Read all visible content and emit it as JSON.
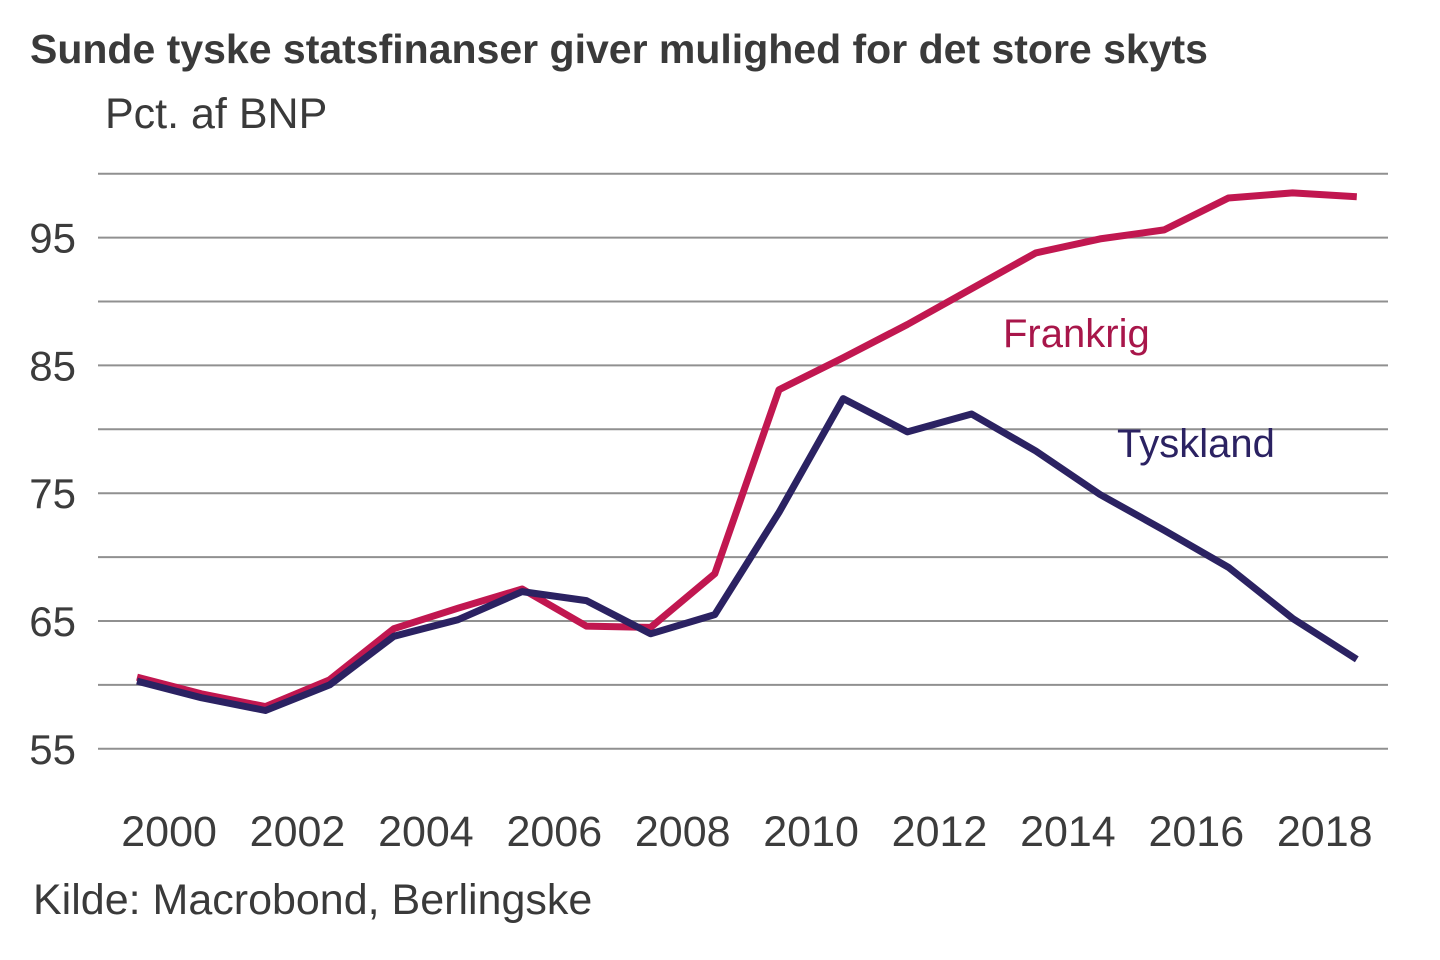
{
  "title": "Sunde tyske statsfinanser giver mulighed for det store skyts",
  "subtitle": "Pct. af BNP",
  "source": "Kilde: Macrobond, Berlingske",
  "colors": {
    "france_line": "#c11750",
    "france_label": "#a8164a",
    "germany_line": "#2b2262",
    "germany_label": "#2b2262",
    "grid": "#909090",
    "text": "#3c3c3c"
  },
  "chart_data": {
    "type": "line",
    "x": [
      1999,
      2000,
      2001,
      2002,
      2003,
      2004,
      2005,
      2006,
      2007,
      2008,
      2009,
      2010,
      2011,
      2012,
      2013,
      2014,
      2015,
      2016,
      2017,
      2018
    ],
    "series": [
      {
        "name": "Frankrig",
        "color_key": "france_line",
        "label_color_key": "france_label",
        "values": [
          60.6,
          59.3,
          58.3,
          60.4,
          64.4,
          66.0,
          67.5,
          64.6,
          64.5,
          68.7,
          83.1,
          85.6,
          88.2,
          91.0,
          93.8,
          94.9,
          95.6,
          98.1,
          98.5,
          98.2
        ]
      },
      {
        "name": "Tyskland",
        "color_key": "germany_line",
        "label_color_key": "germany_label",
        "values": [
          60.3,
          59.0,
          58.0,
          60.0,
          63.8,
          65.1,
          67.3,
          66.6,
          64.0,
          65.5,
          73.5,
          82.4,
          79.8,
          81.2,
          78.3,
          74.9,
          72.1,
          69.2,
          65.2,
          62.0
        ]
      }
    ],
    "title": "Sunde tyske statsfinanser giver mulighed for det store skyts",
    "ylabel": "Pct. af BNP",
    "xlabel": "",
    "ylim": [
      55,
      100
    ],
    "grid": "on",
    "grid_values": [
      55,
      60,
      65,
      70,
      75,
      80,
      85,
      90,
      95,
      100
    ],
    "ytick_values": [
      55,
      65,
      75,
      85,
      95
    ],
    "xtick_years": [
      2000,
      2002,
      2004,
      2006,
      2008,
      2010,
      2012,
      2014,
      2016,
      2018
    ],
    "legend_position": "inline-labels"
  }
}
